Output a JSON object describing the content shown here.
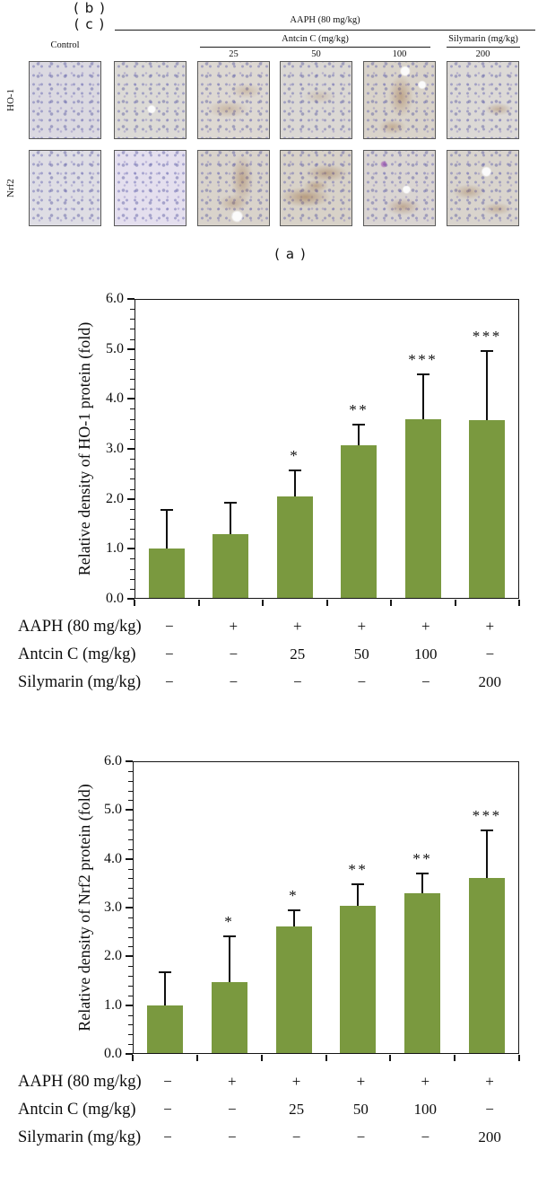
{
  "figure": {
    "panel_a": {
      "label": "( a )",
      "header": {
        "control_label": "Control",
        "group_label": "AAPH (80 mg/kg)",
        "sub_group_label": "Antcin C (mg/kg)",
        "sub_group2_label": "Silymarin (mg/kg)",
        "doses": [
          "25",
          "50",
          "100"
        ],
        "silymarin_dose": "200"
      },
      "rows": [
        {
          "label": "HO-1"
        },
        {
          "label": "Nrf2"
        }
      ],
      "columns": [
        "Control",
        "AAPH",
        "Antcin C 25",
        "Antcin C 50",
        "Antcin C 100",
        "Silymarin 200"
      ],
      "tiles": [
        {
          "row": "HO-1",
          "col": "Control",
          "stain": "none",
          "base": "#dbd9e1"
        },
        {
          "row": "HO-1",
          "col": "AAPH",
          "stain": "trace",
          "base": "#dcdad6"
        },
        {
          "row": "HO-1",
          "col": "AntcinC-25",
          "stain": "weak",
          "base": "#ddd8d2"
        },
        {
          "row": "HO-1",
          "col": "AntcinC-50",
          "stain": "trace",
          "base": "#dbd8d4"
        },
        {
          "row": "HO-1",
          "col": "AntcinC-100",
          "stain": "moderate",
          "base": "#d9d3ca"
        },
        {
          "row": "HO-1",
          "col": "Silymarin-200",
          "stain": "weak",
          "base": "#dcd9d6"
        },
        {
          "row": "Nrf2",
          "col": "Control",
          "stain": "none",
          "base": "#deddе4"
        },
        {
          "row": "Nrf2",
          "col": "AAPH",
          "stain": "none",
          "base": "#e4dfee"
        },
        {
          "row": "Nrf2",
          "col": "AntcinC-25",
          "stain": "moderate",
          "base": "#d9d3cb"
        },
        {
          "row": "Nrf2",
          "col": "AntcinC-50",
          "stain": "strong",
          "base": "#d8d2c8"
        },
        {
          "row": "Nrf2",
          "col": "AntcinC-100",
          "stain": "moderate",
          "base": "#dad5d2"
        },
        {
          "row": "Nrf2",
          "col": "Silymarin-200",
          "stain": "moderate",
          "base": "#d9d4cd"
        }
      ]
    }
  },
  "chart_data": [
    {
      "type": "bar",
      "panel": "b",
      "panel_label": "( b )",
      "ylabel": "Relative density of HO-1 protein (fold)",
      "ylim": [
        0.0,
        6.0
      ],
      "ytick_step": 1.0,
      "ytick_labels": [
        "0.0",
        "1.0",
        "2.0",
        "3.0",
        "4.0",
        "5.0",
        "6.0"
      ],
      "grid": false,
      "bar_color": "#7a993f",
      "categories": [
        "Control",
        "AAPH",
        "AAPH+AntcinC25",
        "AAPH+AntcinC50",
        "AAPH+AntcinC100",
        "AAPH+Silymarin200"
      ],
      "values": [
        1.0,
        1.3,
        2.05,
        3.08,
        3.6,
        3.57
      ],
      "error_up": [
        0.77,
        0.62,
        0.51,
        0.41,
        0.9,
        1.38
      ],
      "significance": [
        "",
        "",
        "*",
        "**",
        "***",
        "***"
      ],
      "condition_rows": [
        {
          "label": "AAPH (80 mg/kg)",
          "values": [
            "−",
            "+",
            "+",
            "+",
            "+",
            "+"
          ]
        },
        {
          "label": "Antcin C (mg/kg)",
          "values": [
            "−",
            "−",
            "25",
            "50",
            "100",
            "−"
          ]
        },
        {
          "label": "Silymarin (mg/kg)",
          "values": [
            "−",
            "−",
            "−",
            "−",
            "−",
            "200"
          ]
        }
      ]
    },
    {
      "type": "bar",
      "panel": "c",
      "panel_label": "( c )",
      "ylabel": "Relative density of  Nrf2 protein (fold)",
      "ylim": [
        0.0,
        6.0
      ],
      "ytick_step": 1.0,
      "ytick_labels": [
        "0.0",
        "1.0",
        "2.0",
        "3.0",
        "4.0",
        "5.0",
        "6.0"
      ],
      "grid": false,
      "bar_color": "#7a993f",
      "categories": [
        "Control",
        "AAPH",
        "AAPH+AntcinC25",
        "AAPH+AntcinC50",
        "AAPH+AntcinC100",
        "AAPH+Silymarin200"
      ],
      "values": [
        1.0,
        1.48,
        2.62,
        3.03,
        3.3,
        3.6
      ],
      "error_up": [
        0.67,
        0.93,
        0.33,
        0.44,
        0.4,
        0.98
      ],
      "significance": [
        "",
        "*",
        "*",
        "**",
        "**",
        "***"
      ],
      "condition_rows": [
        {
          "label": "AAPH (80 mg/kg)",
          "values": [
            "−",
            "+",
            "+",
            "+",
            "+",
            "+"
          ]
        },
        {
          "label": "Antcin C (mg/kg)",
          "values": [
            "−",
            "−",
            "25",
            "50",
            "100",
            "−"
          ]
        },
        {
          "label": "Silymarin (mg/kg)",
          "values": [
            "−",
            "−",
            "−",
            "−",
            "−",
            "200"
          ]
        }
      ]
    }
  ]
}
